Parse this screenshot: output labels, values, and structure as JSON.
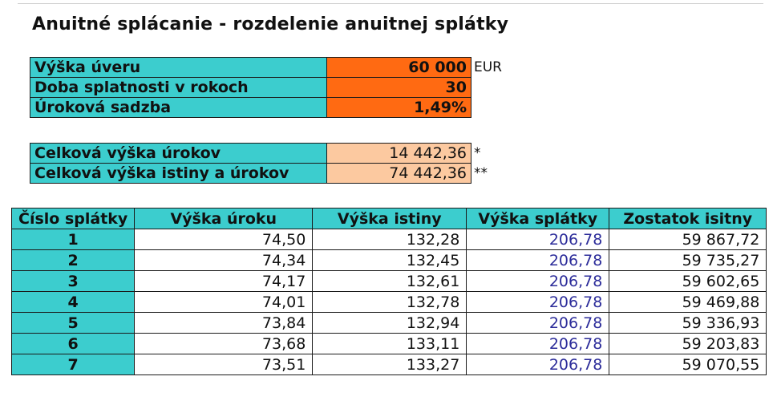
{
  "title": "Anuitné splácanie - rozdelenie anuitnej splátky",
  "params": [
    {
      "label": "Výška úveru",
      "value": "60 000",
      "note": "EUR"
    },
    {
      "label": "Doba splatnosti v rokoch",
      "value": "30",
      "note": ""
    },
    {
      "label": "Úroková sadzba",
      "value": "1,49%",
      "note": ""
    }
  ],
  "totals": [
    {
      "label": "Celková výška úrokov",
      "value": "14 442,36",
      "note": "*"
    },
    {
      "label": "Celková výška istiny a úrokov",
      "value": "74 442,36",
      "note": "**"
    }
  ],
  "schedule": {
    "headers": [
      "Číslo splátky",
      "Výška úroku",
      "Výška istiny",
      "Výška splátky",
      "Zostatok isitny"
    ],
    "rows": [
      [
        "1",
        "74,50",
        "132,28",
        "206,78",
        "59 867,72"
      ],
      [
        "2",
        "74,34",
        "132,45",
        "206,78",
        "59 735,27"
      ],
      [
        "3",
        "74,17",
        "132,61",
        "206,78",
        "59 602,65"
      ],
      [
        "4",
        "74,01",
        "132,78",
        "206,78",
        "59 469,88"
      ],
      [
        "5",
        "73,84",
        "132,94",
        "206,78",
        "59 336,93"
      ],
      [
        "6",
        "73,68",
        "133,11",
        "206,78",
        "59 203,83"
      ],
      [
        "7",
        "73,51",
        "133,27",
        "206,78",
        "59 070,55"
      ]
    ]
  },
  "colors": {
    "header_teal": "#3ccdce",
    "input_orange": "#ff6a12",
    "total_peach": "#fcc9a0",
    "payment_text": "#2c2c9a"
  }
}
